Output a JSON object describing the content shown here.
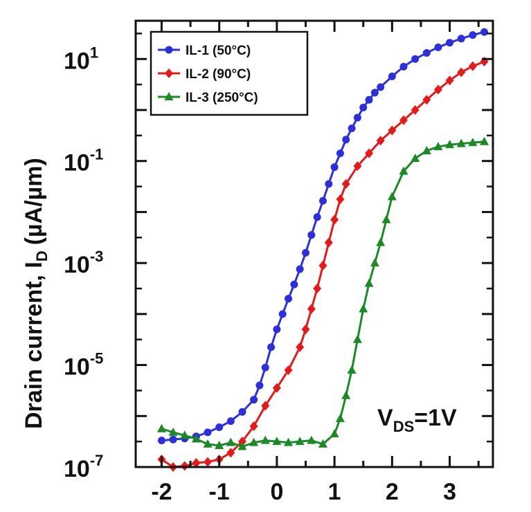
{
  "chart_data": {
    "type": "line",
    "title": "",
    "ylabel": "Drain current, I",
    "ylabel_subscript": "D",
    "ylabel_unit": "(µA/µm)",
    "xlabel": "",
    "xlim": [
      -2.45,
      3.75
    ],
    "ylim_log10": [
      -7,
      1.75
    ],
    "y_scale": "log",
    "x_ticks": [
      "-2",
      "-1",
      "0",
      "1",
      "2",
      "3"
    ],
    "y_ticks": [
      {
        "base": "10",
        "exp": "1"
      },
      {
        "base": "10",
        "exp": "-1"
      },
      {
        "base": "10",
        "exp": "-3"
      },
      {
        "base": "10",
        "exp": "-5"
      },
      {
        "base": "10",
        "exp": "-7"
      }
    ],
    "legend": {
      "placement": "top-left",
      "items": [
        "IL-1 (50°C)",
        "IL-2 (90°C)",
        "IL-3 (250°C)"
      ]
    },
    "annotation": {
      "main": "V",
      "sub": "DS",
      "tail": "=1V"
    },
    "series": [
      {
        "name": "IL-1 (50°C)",
        "color": "#2b2fe0",
        "marker": "circle",
        "x": [
          -2.0,
          -1.8,
          -1.6,
          -1.4,
          -1.2,
          -1.0,
          -0.8,
          -0.6,
          -0.4,
          -0.3,
          -0.2,
          -0.1,
          0.0,
          0.1,
          0.2,
          0.3,
          0.4,
          0.5,
          0.6,
          0.7,
          0.8,
          0.9,
          1.0,
          1.1,
          1.2,
          1.3,
          1.4,
          1.5,
          1.6,
          1.7,
          1.8,
          2.0,
          2.2,
          2.4,
          2.6,
          2.8,
          3.0,
          3.2,
          3.4,
          3.6
        ],
        "log10_y": [
          -6.48,
          -6.46,
          -6.44,
          -6.4,
          -6.32,
          -6.22,
          -6.1,
          -5.92,
          -5.68,
          -5.4,
          -5.05,
          -4.65,
          -4.3,
          -4.0,
          -3.7,
          -3.42,
          -3.12,
          -2.8,
          -2.45,
          -2.1,
          -1.78,
          -1.45,
          -1.12,
          -0.85,
          -0.58,
          -0.36,
          -0.15,
          0.05,
          0.2,
          0.34,
          0.45,
          0.66,
          0.85,
          1.0,
          1.12,
          1.23,
          1.32,
          1.4,
          1.47,
          1.53
        ]
      },
      {
        "name": "IL-2 (90°C)",
        "color": "#e81818",
        "marker": "diamond",
        "x": [
          -2.0,
          -1.8,
          -1.6,
          -1.4,
          -1.2,
          -1.0,
          -0.8,
          -0.6,
          -0.4,
          -0.2,
          0.0,
          0.2,
          0.4,
          0.5,
          0.6,
          0.7,
          0.8,
          0.9,
          1.0,
          1.1,
          1.2,
          1.4,
          1.6,
          1.8,
          2.0,
          2.2,
          2.4,
          2.6,
          2.8,
          3.0,
          3.2,
          3.4,
          3.6
        ],
        "log10_y": [
          -6.85,
          -7.0,
          -6.98,
          -6.92,
          -6.9,
          -6.85,
          -6.72,
          -6.5,
          -6.2,
          -5.8,
          -5.45,
          -5.1,
          -4.65,
          -4.3,
          -3.9,
          -3.5,
          -3.05,
          -2.6,
          -2.15,
          -1.75,
          -1.45,
          -1.1,
          -0.85,
          -0.6,
          -0.4,
          -0.2,
          0.0,
          0.2,
          0.4,
          0.58,
          0.74,
          0.86,
          0.95
        ]
      },
      {
        "name": "IL-3 (250°C)",
        "color": "#1a8a24",
        "marker": "triangle",
        "x": [
          -2.0,
          -1.8,
          -1.6,
          -1.4,
          -1.2,
          -1.0,
          -0.8,
          -0.6,
          -0.4,
          -0.2,
          0.0,
          0.2,
          0.4,
          0.6,
          0.8,
          1.0,
          1.1,
          1.2,
          1.3,
          1.4,
          1.5,
          1.6,
          1.7,
          1.8,
          1.9,
          2.0,
          2.2,
          2.4,
          2.6,
          2.8,
          3.0,
          3.2,
          3.4,
          3.6
        ],
        "log10_y": [
          -6.25,
          -6.32,
          -6.38,
          -6.45,
          -6.55,
          -6.58,
          -6.52,
          -6.6,
          -6.52,
          -6.48,
          -6.5,
          -6.52,
          -6.5,
          -6.48,
          -6.55,
          -6.35,
          -6.05,
          -5.6,
          -5.1,
          -4.5,
          -3.9,
          -3.4,
          -3.0,
          -2.6,
          -2.15,
          -1.7,
          -1.2,
          -0.95,
          -0.8,
          -0.72,
          -0.68,
          -0.66,
          -0.64,
          -0.62
        ]
      }
    ]
  }
}
